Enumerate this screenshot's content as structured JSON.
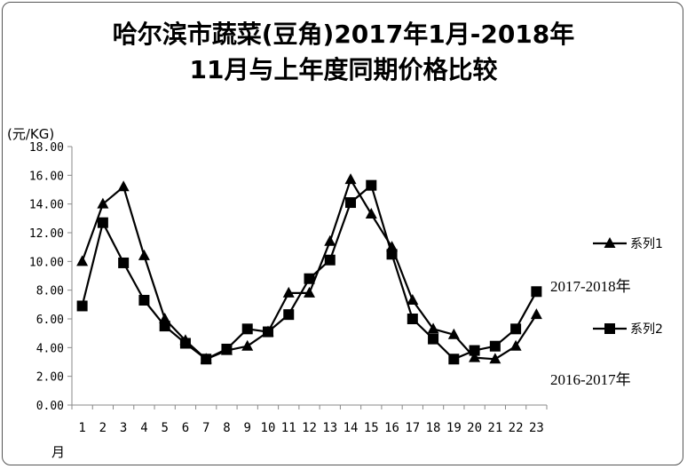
{
  "chart_data": {
    "type": "line",
    "title_line1": "哈尔滨市蔬菜(豆角)2017年1月-2018年",
    "title_line2": "11月与上年度同期价格比较",
    "ylabel": "(元/KG)",
    "xlabel": "月",
    "ylim": [
      0,
      18
    ],
    "yticks": [
      "0.00",
      "2.00",
      "4.00",
      "6.00",
      "8.00",
      "10.00",
      "12.00",
      "14.00",
      "16.00",
      "18.00"
    ],
    "categories": [
      "1",
      "2",
      "3",
      "4",
      "5",
      "6",
      "7",
      "8",
      "9",
      "10",
      "11",
      "12",
      "13",
      "14",
      "15",
      "16",
      "17",
      "18",
      "19",
      "20",
      "21",
      "22",
      "23"
    ],
    "grid": false,
    "legend_position": "right",
    "series": [
      {
        "name": "系列1",
        "marker": "triangle",
        "annotation": "2017-2018年",
        "values": [
          10.0,
          14.0,
          15.2,
          10.4,
          6.0,
          4.5,
          3.2,
          3.8,
          4.1,
          5.1,
          7.8,
          7.8,
          11.4,
          15.7,
          13.3,
          11.0,
          7.3,
          5.3,
          4.9,
          3.3,
          3.2,
          4.1,
          6.3
        ]
      },
      {
        "name": "系列2",
        "marker": "square",
        "annotation": "2016-2017年",
        "values": [
          6.9,
          12.7,
          9.9,
          7.3,
          5.5,
          4.3,
          3.2,
          3.9,
          5.3,
          5.1,
          6.3,
          8.8,
          10.1,
          14.1,
          15.3,
          10.5,
          6.0,
          4.6,
          3.2,
          3.8,
          4.1,
          5.3,
          7.9
        ]
      }
    ]
  }
}
